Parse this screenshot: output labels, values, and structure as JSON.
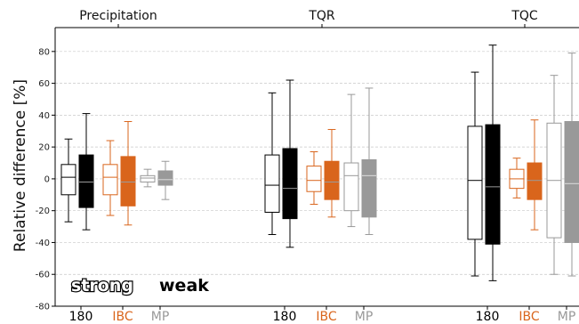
{
  "chart_data": {
    "type": "boxplot",
    "ylabel": "Relative difference [%]",
    "ylim": [
      -80,
      95
    ],
    "yticks": [
      -80,
      -60,
      -40,
      -20,
      0,
      20,
      40,
      60,
      80
    ],
    "grid": "horizontal dashed",
    "groups": [
      "Precipitation",
      "TQR",
      "TQC"
    ],
    "categories": [
      "180",
      "IBC",
      "MP"
    ],
    "category_colors": {
      "180": "#000000",
      "IBC": "#d9651c",
      "MP": "#999999"
    },
    "legend": {
      "strong": "strong",
      "weak": "weak",
      "placement": "bottom-left"
    },
    "series": [
      {
        "group": "Precipitation",
        "category": "180",
        "regime": "strong",
        "whisker_low": -27,
        "q1": -10,
        "median": 1,
        "q3": 9,
        "whisker_high": 25
      },
      {
        "group": "Precipitation",
        "category": "180",
        "regime": "weak",
        "whisker_low": -32,
        "q1": -18,
        "median": -2,
        "q3": 15,
        "whisker_high": 41
      },
      {
        "group": "Precipitation",
        "category": "IBC",
        "regime": "strong",
        "whisker_low": -23,
        "q1": -10,
        "median": 1,
        "q3": 9,
        "whisker_high": 24
      },
      {
        "group": "Precipitation",
        "category": "IBC",
        "regime": "weak",
        "whisker_low": -29,
        "q1": -17,
        "median": -2,
        "q3": 14,
        "whisker_high": 36
      },
      {
        "group": "Precipitation",
        "category": "MP",
        "regime": "strong",
        "whisker_low": -5,
        "q1": -2,
        "median": 0.5,
        "q3": 2,
        "whisker_high": 6
      },
      {
        "group": "Precipitation",
        "category": "MP",
        "regime": "weak",
        "whisker_low": -13,
        "q1": -4,
        "median": -0.5,
        "q3": 5,
        "whisker_high": 11
      },
      {
        "group": "TQR",
        "category": "180",
        "regime": "strong",
        "whisker_low": -35,
        "q1": -21,
        "median": -4,
        "q3": 15,
        "whisker_high": 54
      },
      {
        "group": "TQR",
        "category": "180",
        "regime": "weak",
        "whisker_low": -43,
        "q1": -25,
        "median": -6,
        "q3": 19,
        "whisker_high": 62
      },
      {
        "group": "TQR",
        "category": "IBC",
        "regime": "strong",
        "whisker_low": -16,
        "q1": -8,
        "median": -1,
        "q3": 8,
        "whisker_high": 17
      },
      {
        "group": "TQR",
        "category": "IBC",
        "regime": "weak",
        "whisker_low": -24,
        "q1": -13,
        "median": -2,
        "q3": 11,
        "whisker_high": 31
      },
      {
        "group": "TQR",
        "category": "MP",
        "regime": "strong",
        "whisker_low": -30,
        "q1": -20,
        "median": 2,
        "q3": 10,
        "whisker_high": 53
      },
      {
        "group": "TQR",
        "category": "MP",
        "regime": "weak",
        "whisker_low": -35,
        "q1": -24,
        "median": 2,
        "q3": 12,
        "whisker_high": 57
      },
      {
        "group": "TQC",
        "category": "180",
        "regime": "strong",
        "whisker_low": -61,
        "q1": -38,
        "median": -1,
        "q3": 33,
        "whisker_high": 67
      },
      {
        "group": "TQC",
        "category": "180",
        "regime": "weak",
        "whisker_low": -64,
        "q1": -41,
        "median": -5,
        "q3": 34,
        "whisker_high": 84
      },
      {
        "group": "TQC",
        "category": "IBC",
        "regime": "strong",
        "whisker_low": -12,
        "q1": -6,
        "median": 0,
        "q3": 6,
        "whisker_high": 13
      },
      {
        "group": "TQC",
        "category": "IBC",
        "regime": "weak",
        "whisker_low": -32,
        "q1": -13,
        "median": -1,
        "q3": 10,
        "whisker_high": 37
      },
      {
        "group": "TQC",
        "category": "MP",
        "regime": "strong",
        "whisker_low": -60,
        "q1": -37,
        "median": -1,
        "q3": 35,
        "whisker_high": 65
      },
      {
        "group": "TQC",
        "category": "MP",
        "regime": "weak",
        "whisker_low": -61,
        "q1": -40,
        "median": -3,
        "q3": 36,
        "whisker_high": 79
      }
    ]
  }
}
